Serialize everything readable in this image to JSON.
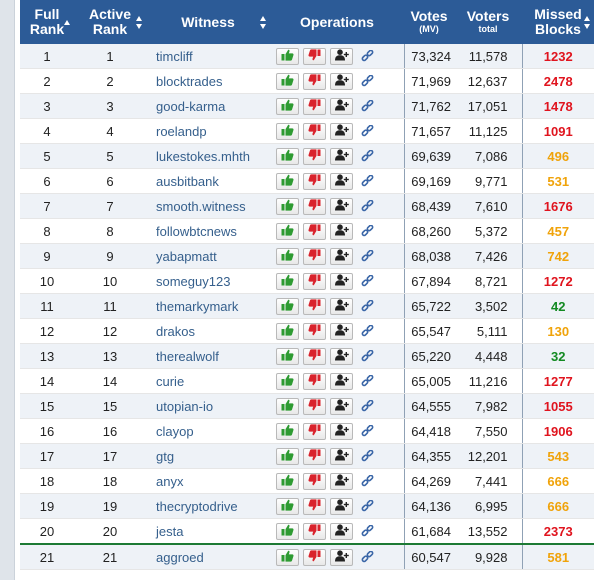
{
  "header": {
    "full_rank": [
      "Full",
      "Rank"
    ],
    "active_rank": [
      "Active",
      "Rank"
    ],
    "witness": "Witness",
    "operations": "Operations",
    "votes": "Votes",
    "votes_sub": "(MV)",
    "voters": "Voters",
    "voters_sub": "total",
    "missed": [
      "Missed",
      "Blocks"
    ]
  },
  "colors": {
    "header_bg": "#2c5b97",
    "link": "#355f8c",
    "missed_red": "#e0141e",
    "missed_orange": "#f0a30a",
    "missed_green": "#138a22",
    "approve_green": "#2e9b32",
    "disapprove_red": "#d9232c"
  },
  "icons": {
    "approve": "thumbs-up-icon",
    "disapprove": "thumbs-down-icon",
    "proxy": "user-plus-icon",
    "link": "link-icon",
    "sort": "sort-icon"
  },
  "rows": [
    {
      "full": "1",
      "active": "1",
      "witness": "timcliff",
      "votes": "73,324",
      "voters": "11,578",
      "missed": "1232",
      "level": "red"
    },
    {
      "full": "2",
      "active": "2",
      "witness": "blocktrades",
      "votes": "71,969",
      "voters": "12,637",
      "missed": "2478",
      "level": "red"
    },
    {
      "full": "3",
      "active": "3",
      "witness": "good-karma",
      "votes": "71,762",
      "voters": "17,051",
      "missed": "1478",
      "level": "red"
    },
    {
      "full": "4",
      "active": "4",
      "witness": "roelandp",
      "votes": "71,657",
      "voters": "11,125",
      "missed": "1091",
      "level": "red"
    },
    {
      "full": "5",
      "active": "5",
      "witness": "lukestokes.mhth",
      "votes": "69,639",
      "voters": "7,086",
      "missed": "496",
      "level": "orange"
    },
    {
      "full": "6",
      "active": "6",
      "witness": "ausbitbank",
      "votes": "69,169",
      "voters": "9,771",
      "missed": "531",
      "level": "orange"
    },
    {
      "full": "7",
      "active": "7",
      "witness": "smooth.witness",
      "votes": "68,439",
      "voters": "7,610",
      "missed": "1676",
      "level": "red"
    },
    {
      "full": "8",
      "active": "8",
      "witness": "followbtcnews",
      "votes": "68,260",
      "voters": "5,372",
      "missed": "457",
      "level": "orange"
    },
    {
      "full": "9",
      "active": "9",
      "witness": "yabapmatt",
      "votes": "68,038",
      "voters": "7,426",
      "missed": "742",
      "level": "orange"
    },
    {
      "full": "10",
      "active": "10",
      "witness": "someguy123",
      "votes": "67,894",
      "voters": "8,721",
      "missed": "1272",
      "level": "red"
    },
    {
      "full": "11",
      "active": "11",
      "witness": "themarkymark",
      "votes": "65,722",
      "voters": "3,502",
      "missed": "42",
      "level": "green"
    },
    {
      "full": "12",
      "active": "12",
      "witness": "drakos",
      "votes": "65,547",
      "voters": "5,111",
      "missed": "130",
      "level": "orange"
    },
    {
      "full": "13",
      "active": "13",
      "witness": "therealwolf",
      "votes": "65,220",
      "voters": "4,448",
      "missed": "32",
      "level": "green"
    },
    {
      "full": "14",
      "active": "14",
      "witness": "curie",
      "votes": "65,005",
      "voters": "11,216",
      "missed": "1277",
      "level": "red"
    },
    {
      "full": "15",
      "active": "15",
      "witness": "utopian-io",
      "votes": "64,555",
      "voters": "7,982",
      "missed": "1055",
      "level": "red"
    },
    {
      "full": "16",
      "active": "16",
      "witness": "clayop",
      "votes": "64,418",
      "voters": "7,550",
      "missed": "1906",
      "level": "red"
    },
    {
      "full": "17",
      "active": "17",
      "witness": "gtg",
      "votes": "64,355",
      "voters": "12,201",
      "missed": "543",
      "level": "orange"
    },
    {
      "full": "18",
      "active": "18",
      "witness": "anyx",
      "votes": "64,269",
      "voters": "7,441",
      "missed": "666",
      "level": "orange"
    },
    {
      "full": "19",
      "active": "19",
      "witness": "thecryptodrive",
      "votes": "64,136",
      "voters": "6,995",
      "missed": "666",
      "level": "orange"
    },
    {
      "full": "20",
      "active": "20",
      "witness": "jesta",
      "votes": "61,684",
      "voters": "13,552",
      "missed": "2373",
      "level": "red"
    },
    {
      "full": "21",
      "active": "21",
      "witness": "aggroed",
      "votes": "60,547",
      "voters": "9,928",
      "missed": "581",
      "level": "orange"
    }
  ]
}
